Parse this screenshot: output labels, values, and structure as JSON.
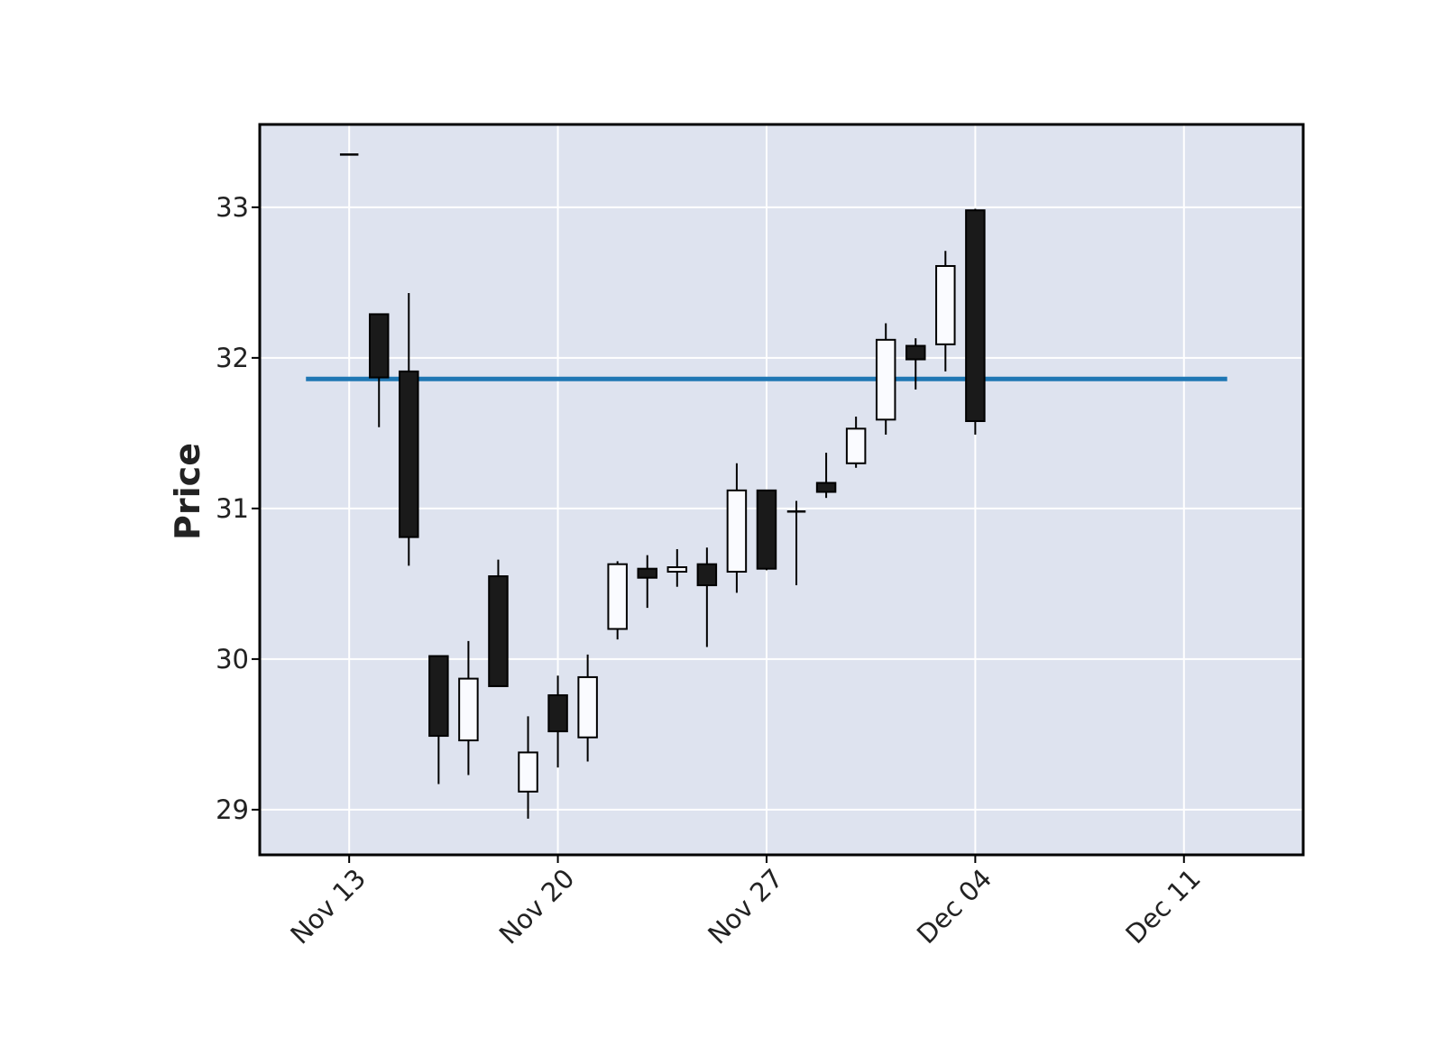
{
  "chart_data": {
    "type": "candlestick",
    "title": "",
    "xlabel": "",
    "ylabel": "Price",
    "ylim": [
      28.7,
      33.55
    ],
    "yticks": [
      29,
      30,
      31,
      32,
      33
    ],
    "xticks": [
      {
        "date": "2023-11-13",
        "label": "Nov 13"
      },
      {
        "date": "2023-11-20",
        "label": "Nov 20"
      },
      {
        "date": "2023-11-27",
        "label": "Nov 27"
      },
      {
        "date": "2023-12-04",
        "label": "Dec 04"
      },
      {
        "date": "2023-12-11",
        "label": "Dec 11"
      }
    ],
    "xlim": [
      "2023-11-10",
      "2023-12-15"
    ],
    "grid": true,
    "legend": "none",
    "colors": {
      "background": "#dee3ef",
      "up_fill": "#fafbff",
      "down_fill": "#1a1a1a",
      "edge": "#000000",
      "grid": "#ffffff",
      "hline": "#1f77b4"
    },
    "hline": {
      "value": 31.86,
      "from": "2023-11-12",
      "to": "2023-12-12"
    },
    "candles": [
      {
        "date": "2023-11-13",
        "open": 33.35,
        "high": 33.35,
        "low": 33.35,
        "close": 33.35
      },
      {
        "date": "2023-11-14",
        "open": 32.29,
        "high": 32.29,
        "low": 31.54,
        "close": 31.87
      },
      {
        "date": "2023-11-15",
        "open": 31.91,
        "high": 32.43,
        "low": 30.62,
        "close": 30.81
      },
      {
        "date": "2023-11-16",
        "open": 30.02,
        "high": 30.02,
        "low": 29.17,
        "close": 29.49
      },
      {
        "date": "2023-11-17",
        "open": 29.46,
        "high": 30.12,
        "low": 29.23,
        "close": 29.87
      },
      {
        "date": "2023-11-18",
        "open": 30.55,
        "high": 30.66,
        "low": 29.82,
        "close": 29.82
      },
      {
        "date": "2023-11-19",
        "open": 29.12,
        "high": 29.62,
        "low": 28.94,
        "close": 29.38
      },
      {
        "date": "2023-11-20",
        "open": 29.76,
        "high": 29.89,
        "low": 29.28,
        "close": 29.52
      },
      {
        "date": "2023-11-21",
        "open": 29.48,
        "high": 30.03,
        "low": 29.32,
        "close": 29.88
      },
      {
        "date": "2023-11-22",
        "open": 30.2,
        "high": 30.65,
        "low": 30.13,
        "close": 30.63
      },
      {
        "date": "2023-11-23",
        "open": 30.6,
        "high": 30.69,
        "low": 30.34,
        "close": 30.54
      },
      {
        "date": "2023-11-24",
        "open": 30.58,
        "high": 30.73,
        "low": 30.48,
        "close": 30.61
      },
      {
        "date": "2023-11-25",
        "open": 30.63,
        "high": 30.74,
        "low": 30.08,
        "close": 30.49
      },
      {
        "date": "2023-11-26",
        "open": 30.58,
        "high": 31.3,
        "low": 30.44,
        "close": 31.12
      },
      {
        "date": "2023-11-27",
        "open": 31.12,
        "high": 31.12,
        "low": 30.59,
        "close": 30.6
      },
      {
        "date": "2023-11-28",
        "open": 30.97,
        "high": 31.05,
        "low": 30.49,
        "close": 30.98
      },
      {
        "date": "2023-11-29",
        "open": 31.17,
        "high": 31.37,
        "low": 31.07,
        "close": 31.11
      },
      {
        "date": "2023-11-30",
        "open": 31.3,
        "high": 31.61,
        "low": 31.27,
        "close": 31.53
      },
      {
        "date": "2023-12-01",
        "open": 31.59,
        "high": 32.23,
        "low": 31.49,
        "close": 32.12
      },
      {
        "date": "2023-12-02",
        "open": 32.08,
        "high": 32.13,
        "low": 31.79,
        "close": 31.99
      },
      {
        "date": "2023-12-03",
        "open": 32.09,
        "high": 32.71,
        "low": 31.91,
        "close": 32.61
      },
      {
        "date": "2023-12-04",
        "open": 32.98,
        "high": 32.99,
        "low": 31.49,
        "close": 31.58
      }
    ]
  }
}
